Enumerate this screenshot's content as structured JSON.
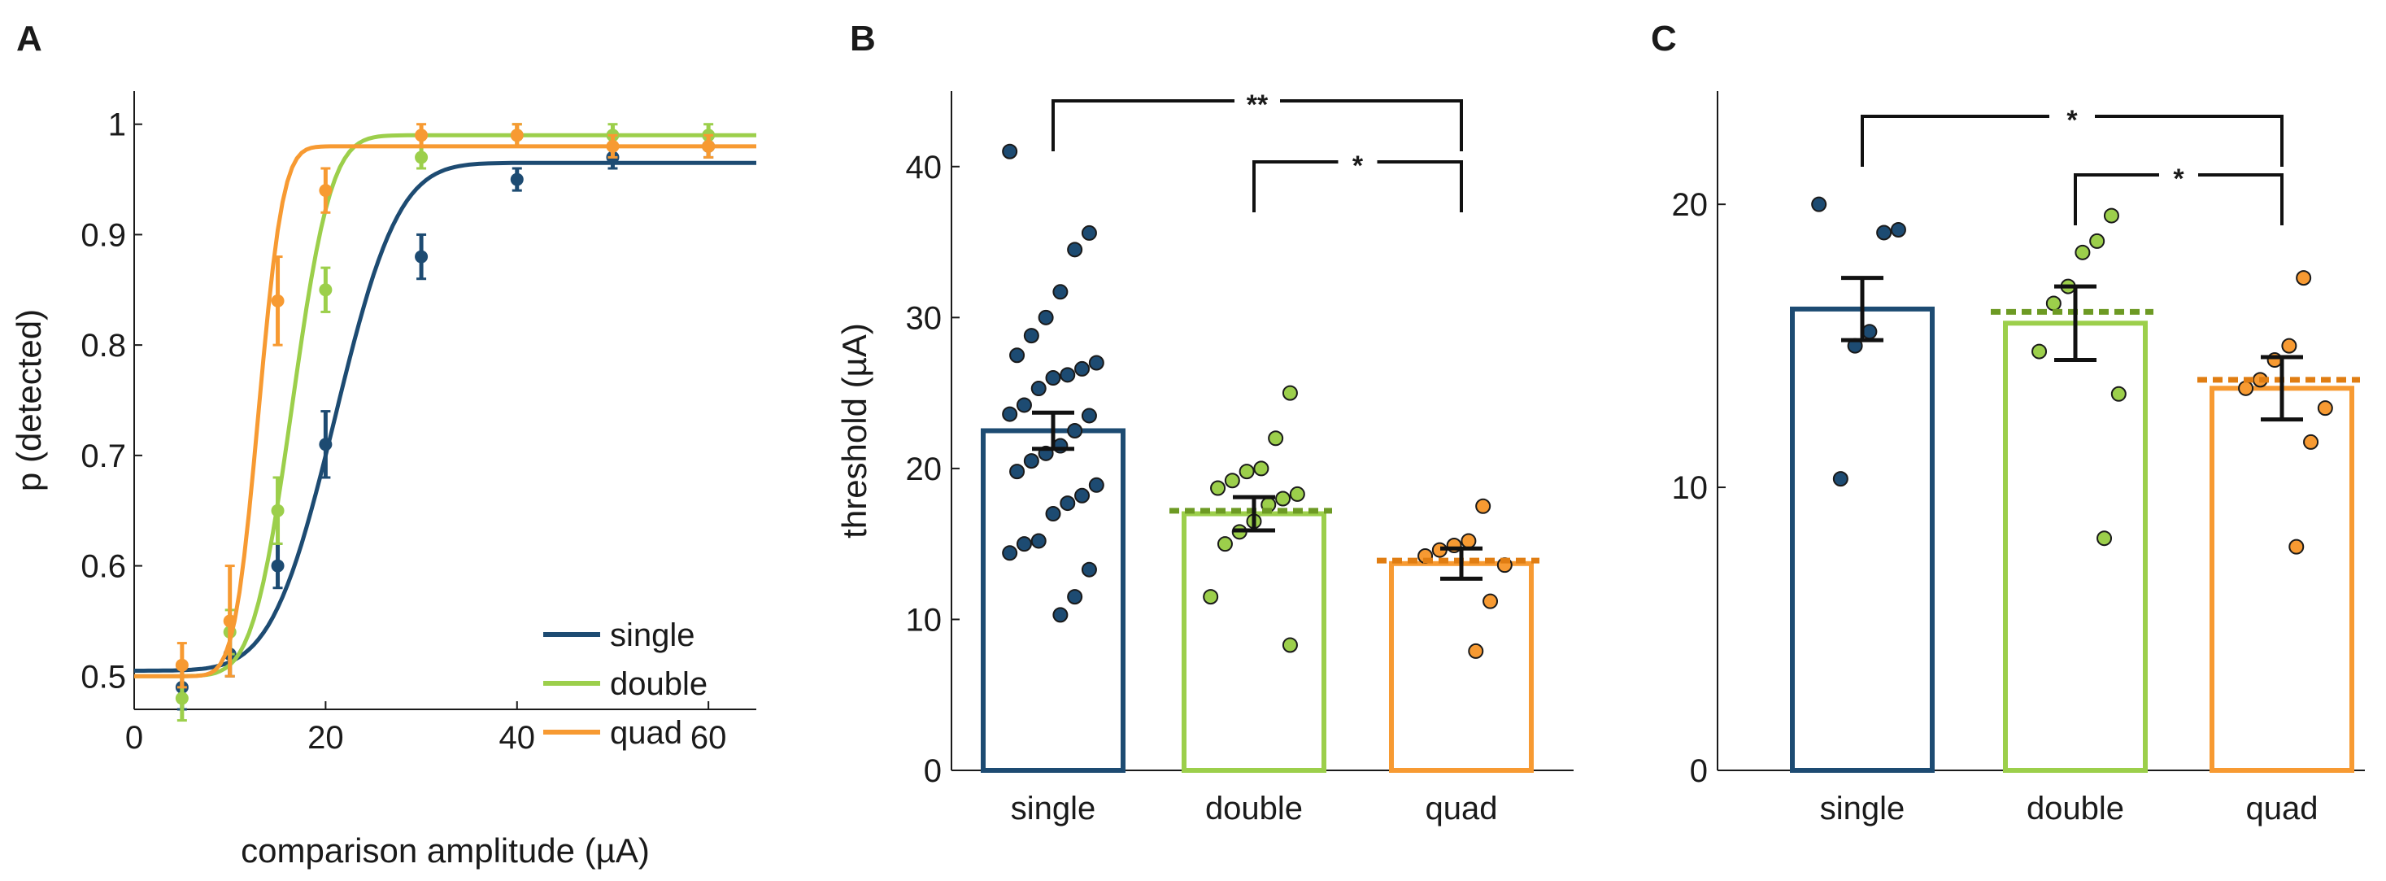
{
  "colors": {
    "single": "#1d4b72",
    "double": "#9ccf4b",
    "quad": "#f79a32",
    "double_dash": "#6d9a24",
    "quad_dash": "#e07d12",
    "axis": "#1a1a1a"
  },
  "chart_data": [
    {
      "panel": "A",
      "type": "line",
      "xlabel": "comparison amplitude (µA)",
      "ylabel": "p (detected)",
      "xlim": [
        0,
        65
      ],
      "ylim": [
        0.47,
        1.03
      ],
      "xticks": [
        0,
        20,
        40,
        60
      ],
      "yticks": [
        0.5,
        0.6,
        0.7,
        0.8,
        0.9,
        1
      ],
      "ytick_labels": [
        "0.5",
        "0.6",
        "0.7",
        "0.8",
        "0.9",
        "1"
      ],
      "legend_position": "bottom-right",
      "series": [
        {
          "name": "single",
          "x": [
            5,
            10,
            15,
            20,
            30,
            40,
            50,
            60
          ],
          "y": [
            0.49,
            0.52,
            0.6,
            0.71,
            0.88,
            0.95,
            0.97,
            0.98
          ],
          "err": [
            0.02,
            0.02,
            0.02,
            0.03,
            0.02,
            0.01,
            0.01,
            0.01
          ],
          "fit": {
            "guess": 0.505,
            "lapse_top": 0.965,
            "mu": 21.0,
            "sigma": 5.2
          }
        },
        {
          "name": "double",
          "x": [
            5,
            10,
            15,
            20,
            30,
            40,
            50,
            60
          ],
          "y": [
            0.48,
            0.54,
            0.65,
            0.85,
            0.97,
            0.99,
            0.99,
            0.99
          ],
          "err": [
            0.02,
            0.02,
            0.03,
            0.02,
            0.01,
            0.01,
            0.01,
            0.01
          ],
          "fit": {
            "guess": 0.5,
            "lapse_top": 0.99,
            "mu": 16.5,
            "sigma": 3.2
          }
        },
        {
          "name": "quad",
          "x": [
            5,
            10,
            15,
            20,
            30,
            40,
            50,
            60
          ],
          "y": [
            0.51,
            0.55,
            0.84,
            0.94,
            0.99,
            0.99,
            0.98,
            0.98
          ],
          "err": [
            0.02,
            0.05,
            0.04,
            0.02,
            0.01,
            0.01,
            0.01,
            0.01
          ],
          "fit": {
            "guess": 0.5,
            "lapse_top": 0.98,
            "mu": 13.0,
            "sigma": 2.0
          }
        }
      ]
    },
    {
      "panel": "B",
      "type": "bar",
      "ylabel": "threshold (µA)",
      "ylim": [
        0,
        45
      ],
      "yticks": [
        0,
        10,
        20,
        30,
        40
      ],
      "categories": [
        "single",
        "double",
        "quad"
      ],
      "values": [
        22.5,
        17.0,
        13.7
      ],
      "sem": [
        1.2,
        1.1,
        1.0
      ],
      "predicted": [
        null,
        17.2,
        13.9
      ],
      "points": [
        [
          41,
          35.6,
          34.5,
          31.7,
          30,
          28.8,
          27.5,
          27,
          26.6,
          26.2,
          26,
          25.3,
          24.2,
          23.6,
          23.5,
          22.5,
          21.5,
          21,
          20.5,
          19.8,
          18.9,
          18.2,
          17.7,
          17,
          15.2,
          15,
          14.4,
          13.3,
          11.5,
          10.3
        ],
        [
          25,
          22,
          20,
          19.8,
          19.2,
          18.7,
          18.3,
          18,
          17.6,
          16.5,
          15.8,
          15,
          11.5,
          8.3
        ],
        [
          17.5,
          15.2,
          14.9,
          14.6,
          14.2,
          13.6,
          11.2,
          7.9
        ]
      ],
      "brackets": [
        {
          "from": 0,
          "to": 2,
          "label": "**"
        },
        {
          "from": 1,
          "to": 2,
          "label": "*"
        }
      ]
    },
    {
      "panel": "C",
      "type": "bar",
      "ylabel": "",
      "ylim": [
        0,
        24
      ],
      "yticks": [
        0,
        10,
        20
      ],
      "categories": [
        "single",
        "double",
        "quad"
      ],
      "values": [
        16.3,
        15.8,
        13.5
      ],
      "sem": [
        1.1,
        1.3,
        1.1
      ],
      "predicted": [
        null,
        16.2,
        13.8
      ],
      "points": [
        [
          20,
          19.1,
          19,
          15.5,
          15,
          10.3
        ],
        [
          19.6,
          18.7,
          18.3,
          17.1,
          16.5,
          14.8,
          13.3,
          8.2
        ],
        [
          17.4,
          15,
          14.5,
          13.8,
          13.5,
          12.8,
          11.6,
          7.9
        ]
      ],
      "brackets": [
        {
          "from": 0,
          "to": 2,
          "label": "*"
        },
        {
          "from": 1,
          "to": 2,
          "label": "*"
        }
      ]
    }
  ]
}
